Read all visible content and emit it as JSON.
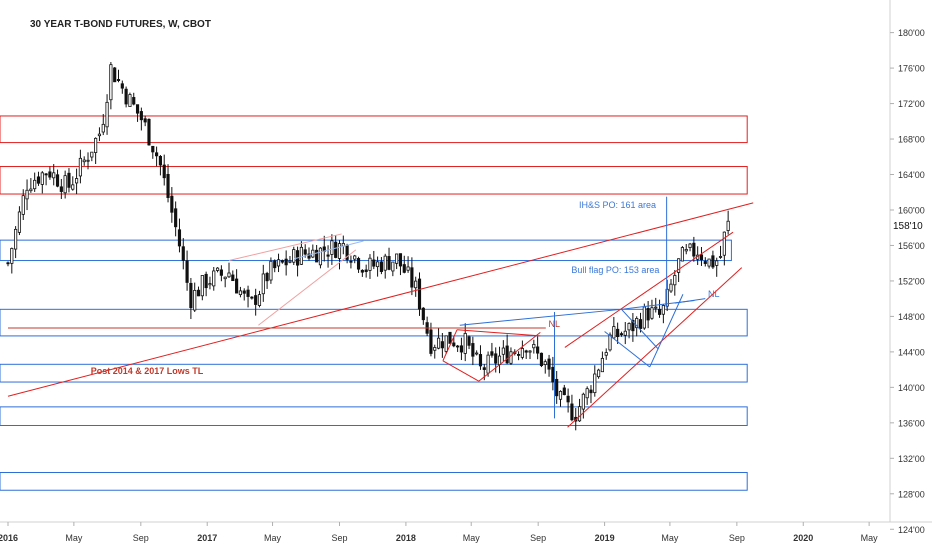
{
  "chart_data": {
    "type": "candlestick",
    "title": "30 YEAR T-BOND FUTURES, W, CBOT",
    "last_price_label": "158'10",
    "y_range": [
      122,
      183
    ],
    "y_ticks": [
      "180'00",
      "176'00",
      "172'00",
      "168'00",
      "164'00",
      "160'00",
      "156'00",
      "152'00",
      "148'00",
      "144'00",
      "140'00",
      "136'00",
      "132'00",
      "128'00",
      "124'00"
    ],
    "y_tick_values": [
      180,
      176,
      172,
      168,
      164,
      160,
      156,
      152,
      148,
      144,
      140,
      136,
      132,
      128,
      124
    ],
    "x_range": [
      "2016-01-01",
      "2020-06-01"
    ],
    "x_ticks": [
      {
        "label": "2016",
        "date": "2016-01-01",
        "bold": true
      },
      {
        "label": "May",
        "date": "2016-05-01",
        "bold": false
      },
      {
        "label": "Sep",
        "date": "2016-09-01",
        "bold": false
      },
      {
        "label": "2017",
        "date": "2017-01-01",
        "bold": true
      },
      {
        "label": "May",
        "date": "2017-05-01",
        "bold": false
      },
      {
        "label": "Sep",
        "date": "2017-09-01",
        "bold": false
      },
      {
        "label": "2018",
        "date": "2018-01-01",
        "bold": true
      },
      {
        "label": "May",
        "date": "2018-05-01",
        "bold": false
      },
      {
        "label": "Sep",
        "date": "2018-09-01",
        "bold": false
      },
      {
        "label": "2019",
        "date": "2019-01-01",
        "bold": true
      },
      {
        "label": "May",
        "date": "2019-05-01",
        "bold": false
      },
      {
        "label": "Sep",
        "date": "2019-09-01",
        "bold": false
      },
      {
        "label": "2020",
        "date": "2020-01-01",
        "bold": true
      },
      {
        "label": "May",
        "date": "2020-05-01",
        "bold": false
      }
    ],
    "close_path": [
      [
        "2016-01-01",
        154.0
      ],
      [
        "2016-02-05",
        163.0
      ],
      [
        "2016-03-15",
        164.5
      ],
      [
        "2016-04-20",
        162.5
      ],
      [
        "2016-05-20",
        165.5
      ],
      [
        "2016-06-20",
        169.0
      ],
      [
        "2016-07-08",
        176.0
      ],
      [
        "2016-08-05",
        173.0
      ],
      [
        "2016-09-05",
        170.0
      ],
      [
        "2016-10-05",
        165.5
      ],
      [
        "2016-11-08",
        157.0
      ],
      [
        "2016-12-01",
        150.0
      ],
      [
        "2016-12-30",
        152.0
      ],
      [
        "2017-02-10",
        153.0
      ],
      [
        "2017-03-20",
        149.0
      ],
      [
        "2017-04-25",
        153.0
      ],
      [
        "2017-06-20",
        155.0
      ],
      [
        "2017-08-05",
        155.5
      ],
      [
        "2017-09-08",
        156.0
      ],
      [
        "2017-10-20",
        153.5
      ],
      [
        "2017-12-15",
        154.5
      ],
      [
        "2018-01-20",
        151.0
      ],
      [
        "2018-02-15",
        145.0
      ],
      [
        "2018-03-20",
        145.5
      ],
      [
        "2018-04-20",
        145.0
      ],
      [
        "2018-05-18",
        142.0
      ],
      [
        "2018-06-25",
        143.5
      ],
      [
        "2018-08-10",
        145.0
      ],
      [
        "2018-09-15",
        142.5
      ],
      [
        "2018-10-10",
        138.5
      ],
      [
        "2018-11-08",
        137.0
      ],
      [
        "2018-12-05",
        140.0
      ],
      [
        "2019-01-10",
        145.5
      ],
      [
        "2019-02-15",
        146.5
      ],
      [
        "2019-03-20",
        148.5
      ],
      [
        "2019-04-15",
        148.0
      ],
      [
        "2019-05-20",
        154.5
      ],
      [
        "2019-06-20",
        155.5
      ],
      [
        "2019-07-15",
        154.0
      ],
      [
        "2019-08-01",
        154.5
      ],
      [
        "2019-08-09",
        157.0
      ],
      [
        "2019-08-16",
        158.3
      ]
    ],
    "support_resistance_zones": [
      {
        "name": "red-zone-upper",
        "color": "#e02020",
        "range": [
          167.6,
          170.6
        ],
        "x_end": "2019-09-20"
      },
      {
        "name": "red-zone-lower",
        "color": "#e02020",
        "range": [
          161.8,
          164.9
        ],
        "x_end": "2019-09-20"
      },
      {
        "name": "blue-zone-156",
        "color": "#2e6fd6",
        "range": [
          154.3,
          156.6
        ],
        "x_end": "2019-08-22"
      },
      {
        "name": "blue-zone-148",
        "color": "#2e6fd6",
        "range": [
          145.8,
          148.8
        ],
        "x_end": "2019-09-20"
      },
      {
        "name": "blue-zone-142",
        "color": "#2e6fd6",
        "range": [
          140.6,
          142.6
        ],
        "x_end": "2019-09-20"
      },
      {
        "name": "blue-zone-137",
        "color": "#2e6fd6",
        "range": [
          135.7,
          137.8
        ],
        "x_end": "2019-09-20"
      },
      {
        "name": "blue-zone-129",
        "color": "#2e6fd6",
        "range": [
          128.4,
          130.4
        ],
        "x_end": "2019-09-20"
      }
    ],
    "trendlines": [
      {
        "name": "post-2014-2017-lows-tl",
        "color": "#e02020",
        "from": [
          "2016-01-01",
          139.0
        ],
        "to": [
          "2019-10-01",
          160.8
        ]
      },
      {
        "name": "horizontal-nl-red",
        "color": "#c0392b",
        "from": [
          "2016-01-01",
          146.7
        ],
        "to": [
          "2018-09-15",
          146.7
        ]
      },
      {
        "name": "rising-wedge-upper",
        "color": "#e02020",
        "from": [
          "2018-10-20",
          144.5
        ],
        "to": [
          "2019-08-25",
          157.5
        ]
      },
      {
        "name": "rising-wedge-lower",
        "color": "#e02020",
        "from": [
          "2018-10-25",
          135.5
        ],
        "to": [
          "2019-09-10",
          153.5
        ]
      },
      {
        "name": "triangle-upper",
        "color": "#e02020",
        "from": [
          "2018-04-05",
          146.5
        ],
        "to": [
          "2018-09-05",
          145.8
        ]
      },
      {
        "name": "triangle-lower",
        "color": "#e02020",
        "from": [
          "2018-03-10",
          143.0
        ],
        "to": [
          "2018-05-15",
          140.7
        ]
      },
      {
        "name": "triangle-rise",
        "color": "#e02020",
        "from": [
          "2018-05-15",
          140.7
        ],
        "to": [
          "2018-09-05",
          146.2
        ]
      },
      {
        "name": "triangle-left",
        "color": "#e02020",
        "from": [
          "2018-03-10",
          143.0
        ],
        "to": [
          "2018-04-05",
          146.5
        ]
      },
      {
        "name": "ihs-neckline",
        "color": "#2e6fd6",
        "from": [
          "2018-04-10",
          147.0
        ],
        "to": [
          "2019-02-01",
          148.8
        ]
      },
      {
        "name": "ihs-neckline-ext",
        "color": "#2e6fd6",
        "from": [
          "2019-02-01",
          148.8
        ],
        "to": [
          "2019-06-15",
          149.8
        ]
      },
      {
        "name": "ihs-measure",
        "color": "#2e6fd6",
        "from": [
          "2018-10-01",
          136.5
        ],
        "to": [
          "2018-10-01",
          148.5
        ]
      },
      {
        "name": "ihs-po-line",
        "color": "#2e6fd6",
        "from": [
          "2019-04-25",
          149.0
        ],
        "to": [
          "2019-04-25",
          161.5
        ]
      },
      {
        "name": "bull-flag-upper",
        "color": "#2e6fd6",
        "from": [
          "2019-02-01",
          148.8
        ],
        "to": [
          "2019-04-10",
          144.3
        ]
      },
      {
        "name": "bull-flag-lower",
        "color": "#2e6fd6",
        "from": [
          "2019-01-01",
          146.3
        ],
        "to": [
          "2019-03-25",
          142.3
        ]
      },
      {
        "name": "bull-flag-pole",
        "color": "#2e6fd6",
        "from": [
          "2019-03-25",
          142.3
        ],
        "to": [
          "2019-05-25",
          150.5
        ]
      },
      {
        "name": "nl-blue",
        "color": "#2e6fd6",
        "from": [
          "2019-05-10",
          149.5
        ],
        "to": [
          "2019-07-05",
          150.0
        ]
      },
      {
        "name": "channel-2017-upper",
        "color": "#f0a0a0",
        "from": [
          "2017-02-10",
          154.3
        ],
        "to": [
          "2017-09-05",
          157.3
        ]
      },
      {
        "name": "channel-2017-lower",
        "color": "#f0a0a0",
        "from": [
          "2017-04-05",
          147.0
        ],
        "to": [
          "2017-10-01",
          155.5
        ]
      },
      {
        "name": "channel-2017-upper-blue",
        "color": "#9cbcf0",
        "from": [
          "2017-06-10",
          154.5
        ],
        "to": [
          "2017-10-15",
          156.5
        ]
      }
    ],
    "annotations": [
      {
        "name": "ihs-po-label",
        "text": "IH&S PO: 161 area",
        "color": "#3c78d8",
        "date": "2018-11-15",
        "value": 160.2
      },
      {
        "name": "bull-flag-po-label",
        "text": "Bull flag PO: 153 area",
        "color": "#3c78d8",
        "date": "2018-11-01",
        "value": 152.9
      },
      {
        "name": "nl-label-blue",
        "text": "NL",
        "color": "#3c78d8",
        "date": "2019-07-10",
        "value": 150.2
      },
      {
        "name": "nl-label-red",
        "text": "NL",
        "color": "#c0392b",
        "date": "2018-09-20",
        "value": 146.8
      },
      {
        "name": "post-lows-tl-label",
        "text": "Post 2014 & 2017 Lows TL",
        "color": "#c0392b",
        "date": "2016-06-01",
        "value": 141.5
      }
    ],
    "colors": {
      "up": "#ffffff",
      "down": "#111111",
      "axis_text": "#333333",
      "red": "#e02020",
      "blue": "#2e6fd6"
    }
  }
}
